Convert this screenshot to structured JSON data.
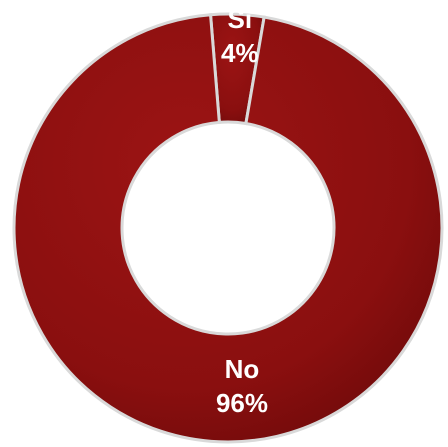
{
  "chart_data": {
    "type": "pie",
    "title": "",
    "slices": [
      {
        "label": "Sì",
        "value": 4,
        "value_label": "4%",
        "color": "#8B1010"
      },
      {
        "label": "No",
        "value": 96,
        "value_label": "96%",
        "color": "#8B1010"
      }
    ],
    "donut": true,
    "legend": "none"
  }
}
